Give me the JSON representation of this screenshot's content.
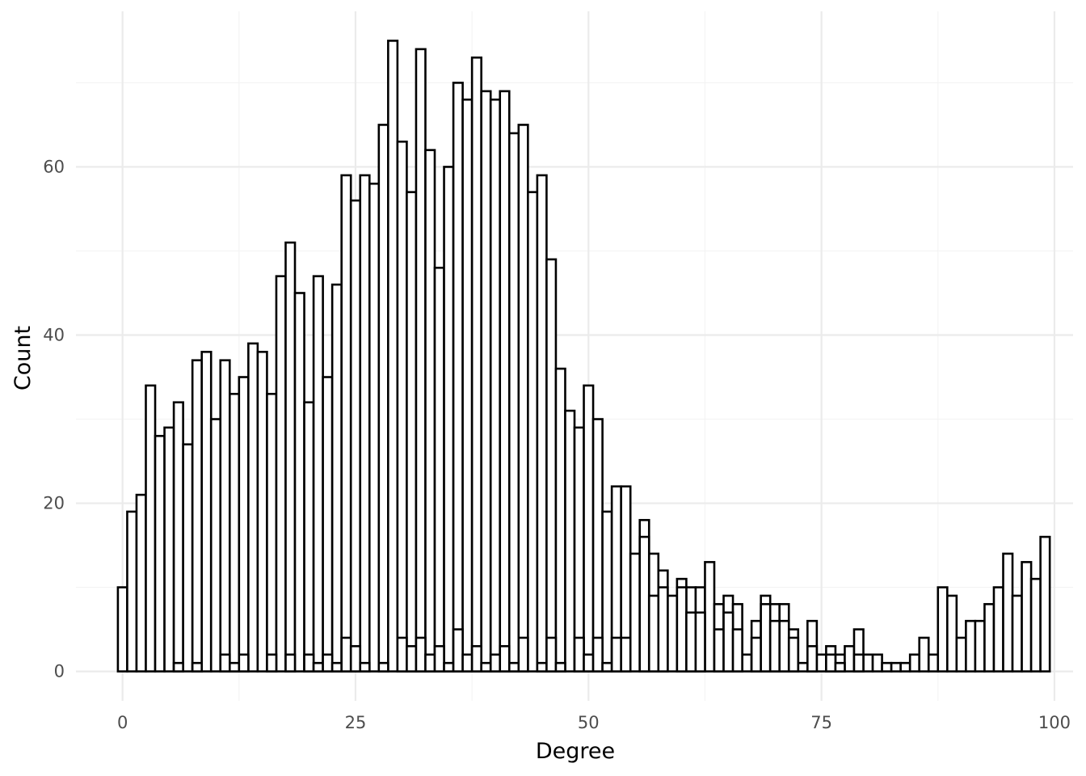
{
  "chart_data": {
    "type": "bar",
    "xlabel": "Degree",
    "ylabel": "Count",
    "xlim": [
      -5,
      102
    ],
    "ylim": [
      -3.5,
      78.5
    ],
    "x_ticks": [
      0,
      25,
      50,
      75,
      100
    ],
    "y_ticks": [
      0,
      20,
      40,
      60
    ],
    "x_tick_labels": [
      "0",
      "25",
      "50",
      "75",
      "100"
    ],
    "y_tick_labels": [
      "0",
      "20",
      "40",
      "60"
    ],
    "grid": true,
    "bin_width": 1,
    "series": [
      {
        "values": [
          [
            0,
            10
          ],
          [
            1,
            19
          ],
          [
            2,
            21
          ],
          [
            3,
            34
          ],
          [
            4,
            28
          ],
          [
            5,
            29
          ],
          [
            6,
            32
          ],
          [
            7,
            27
          ],
          [
            8,
            37
          ],
          [
            9,
            38
          ],
          [
            10,
            30
          ],
          [
            11,
            37
          ],
          [
            12,
            33
          ],
          [
            13,
            35
          ],
          [
            14,
            39
          ],
          [
            15,
            38
          ],
          [
            16,
            33
          ],
          [
            17,
            47
          ],
          [
            18,
            51
          ],
          [
            19,
            45
          ],
          [
            20,
            32
          ],
          [
            21,
            47
          ],
          [
            22,
            35
          ],
          [
            23,
            46
          ],
          [
            24,
            59
          ],
          [
            25,
            56
          ],
          [
            26,
            59
          ],
          [
            27,
            58
          ],
          [
            28,
            65
          ],
          [
            29,
            75
          ],
          [
            30,
            63
          ],
          [
            31,
            57
          ],
          [
            32,
            74
          ],
          [
            33,
            62
          ],
          [
            34,
            48
          ],
          [
            35,
            60
          ],
          [
            36,
            70
          ],
          [
            37,
            68
          ],
          [
            38,
            73
          ],
          [
            39,
            69
          ],
          [
            40,
            68
          ],
          [
            41,
            69
          ],
          [
            42,
            64
          ],
          [
            43,
            65
          ],
          [
            44,
            57
          ],
          [
            45,
            59
          ],
          [
            46,
            49
          ],
          [
            47,
            36
          ],
          [
            48,
            31
          ],
          [
            49,
            29
          ],
          [
            50,
            34
          ],
          [
            51,
            30
          ],
          [
            52,
            19
          ],
          [
            53,
            22
          ],
          [
            54,
            22
          ],
          [
            55,
            14
          ],
          [
            56,
            18
          ],
          [
            57,
            14
          ],
          [
            58,
            12
          ],
          [
            59,
            9
          ],
          [
            60,
            11
          ],
          [
            61,
            10
          ],
          [
            62,
            10
          ],
          [
            63,
            13
          ],
          [
            64,
            8
          ],
          [
            65,
            9
          ],
          [
            66,
            8
          ],
          [
            67,
            2
          ],
          [
            68,
            6
          ],
          [
            69,
            9
          ],
          [
            70,
            8
          ],
          [
            71,
            8
          ],
          [
            72,
            5
          ],
          [
            73,
            1
          ],
          [
            74,
            6
          ],
          [
            75,
            2
          ],
          [
            76,
            3
          ],
          [
            77,
            2
          ],
          [
            78,
            3
          ],
          [
            79,
            5
          ],
          [
            80,
            2
          ],
          [
            81,
            2
          ],
          [
            82,
            1
          ],
          [
            83,
            1
          ],
          [
            84,
            1
          ],
          [
            85,
            2
          ],
          [
            86,
            4
          ],
          [
            87,
            2
          ],
          [
            88,
            10
          ],
          [
            89,
            9
          ],
          [
            90,
            4
          ],
          [
            91,
            6
          ],
          [
            92,
            6
          ],
          [
            93,
            8
          ],
          [
            94,
            10
          ],
          [
            95,
            14
          ],
          [
            96,
            9
          ],
          [
            97,
            13
          ],
          [
            98,
            11
          ],
          [
            99,
            16
          ]
        ]
      },
      {
        "values": [
          [
            6,
            1
          ],
          [
            8,
            1
          ],
          [
            11,
            2
          ],
          [
            12,
            1
          ],
          [
            13,
            2
          ],
          [
            16,
            2
          ],
          [
            18,
            2
          ],
          [
            20,
            2
          ],
          [
            21,
            1
          ],
          [
            22,
            2
          ],
          [
            23,
            1
          ],
          [
            24,
            4
          ],
          [
            25,
            3
          ],
          [
            26,
            1
          ],
          [
            28,
            1
          ],
          [
            30,
            4
          ],
          [
            31,
            3
          ],
          [
            32,
            4
          ],
          [
            33,
            2
          ],
          [
            34,
            3
          ],
          [
            35,
            1
          ],
          [
            36,
            5
          ],
          [
            37,
            2
          ],
          [
            38,
            3
          ],
          [
            39,
            1
          ],
          [
            40,
            2
          ],
          [
            41,
            3
          ],
          [
            42,
            1
          ],
          [
            43,
            4
          ],
          [
            45,
            1
          ],
          [
            46,
            4
          ],
          [
            47,
            1
          ],
          [
            49,
            4
          ],
          [
            50,
            2
          ],
          [
            51,
            4
          ],
          [
            52,
            1
          ],
          [
            53,
            4
          ],
          [
            54,
            4
          ],
          [
            56,
            16
          ],
          [
            57,
            9
          ],
          [
            58,
            10
          ],
          [
            60,
            10
          ],
          [
            61,
            7
          ],
          [
            62,
            7
          ],
          [
            64,
            5
          ],
          [
            65,
            7
          ],
          [
            66,
            5
          ],
          [
            68,
            4
          ],
          [
            69,
            8
          ],
          [
            70,
            6
          ],
          [
            71,
            6
          ],
          [
            72,
            4
          ],
          [
            74,
            3
          ],
          [
            76,
            2
          ],
          [
            77,
            1
          ],
          [
            79,
            2
          ]
        ]
      }
    ]
  }
}
